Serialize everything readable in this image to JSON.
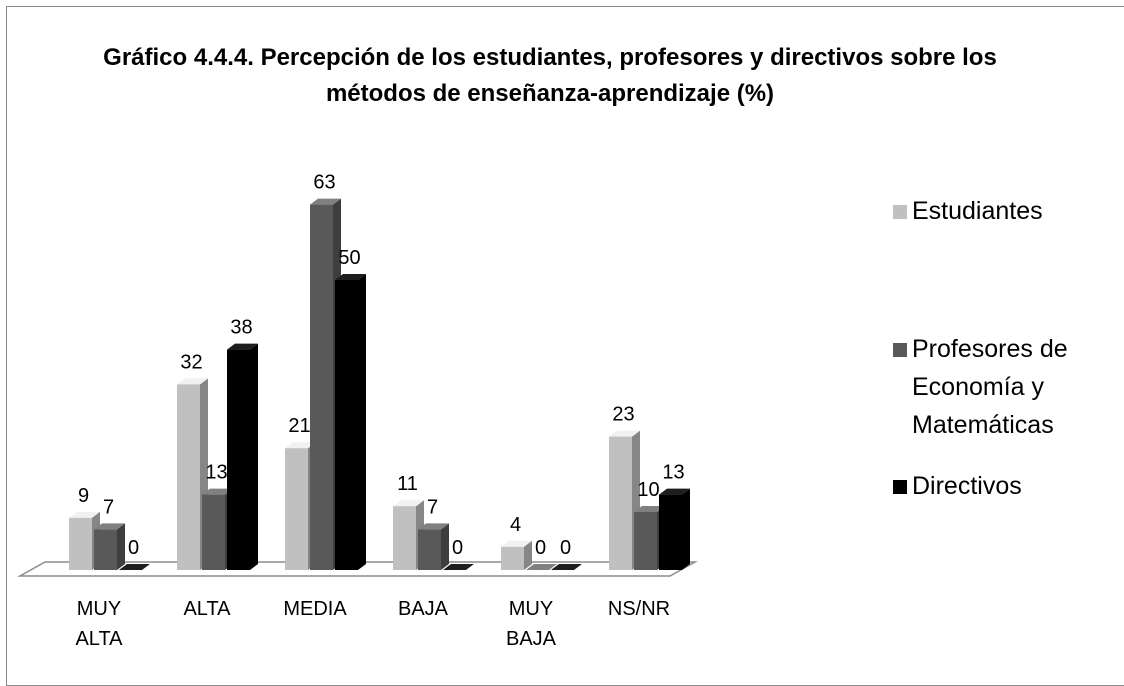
{
  "chart_data": {
    "type": "bar3d",
    "title": "Gráfico 4.4.4. Percepción de los estudiantes, profesores y directivos sobre los métodos de enseñanza-aprendizaje (%)",
    "categories": [
      "MUY ALTA",
      "ALTA",
      "MEDIA",
      "BAJA",
      "MUY BAJA",
      "NS/NR"
    ],
    "series": [
      {
        "name": "Estudiantes",
        "color": "#c0c0c0",
        "values": [
          9,
          32,
          21,
          11,
          4,
          23
        ]
      },
      {
        "name": "Profesores de Economía y Matemáticas",
        "color": "#595959",
        "values": [
          7,
          13,
          63,
          7,
          0,
          10
        ]
      },
      {
        "name": "Directivos",
        "color": "#000000",
        "values": [
          0,
          38,
          50,
          0,
          0,
          13
        ]
      }
    ],
    "ylim": [
      0,
      70
    ],
    "legend": "right"
  }
}
